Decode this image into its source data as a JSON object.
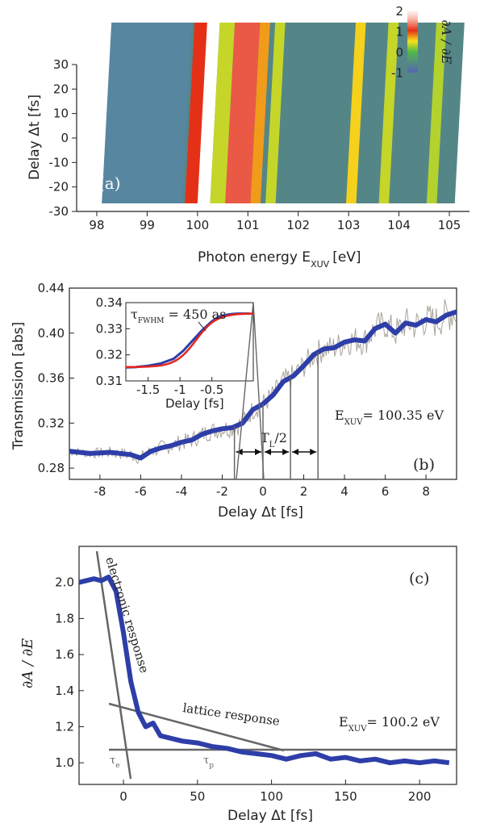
{
  "chart_data": [
    {
      "type": "heatmap",
      "panel": "(a)",
      "xlabel": "Photon energy E",
      "xlabel_sub": "XUV",
      "xlabel_unit": "[eV]",
      "ylabel": "Delay Δt [fs]",
      "xlim": [
        97.6,
        105.4
      ],
      "ylim": [
        -30,
        30
      ],
      "xticks": [
        98,
        99,
        100,
        101,
        102,
        103,
        104,
        105
      ],
      "yticks": [
        30,
        20,
        10,
        0,
        -10,
        -20,
        -30
      ],
      "colorbar": {
        "label": "∂A / ∂E",
        "ticks": [
          2,
          1,
          0,
          -1
        ],
        "colors": [
          "#ffffff",
          "#e53018",
          "#f7e31b",
          "#4fb848",
          "#5864b3"
        ]
      },
      "features": [
        {
          "energy_range": [
            99.75,
            100.05
          ],
          "level": 1.0
        },
        {
          "energy_range": [
            100.0,
            100.25
          ],
          "level": 2.0
        },
        {
          "energy_range": [
            100.25,
            100.55
          ],
          "level": 0.35
        },
        {
          "energy_range": [
            100.55,
            101.05
          ],
          "level": 1.2
        },
        {
          "energy_range": [
            101.05,
            101.25
          ],
          "level": 0.7
        },
        {
          "energy_range": [
            101.35,
            101.55
          ],
          "level": 0.35
        },
        {
          "energy_range": [
            102.95,
            103.15
          ],
          "level": 0.55
        },
        {
          "energy_range": [
            103.6,
            103.8
          ],
          "level": 0.35
        },
        {
          "energy_range": [
            104.55,
            104.75
          ],
          "level": 0.3
        }
      ]
    },
    {
      "type": "line",
      "panel": "(b)",
      "xlabel": "Delay Δt [fs]",
      "ylabel": "Transmission [abs]",
      "xlim": [
        -9.5,
        9.5
      ],
      "ylim": [
        0.27,
        0.44
      ],
      "xticks": [
        -8,
        -6,
        -4,
        -2,
        0,
        2,
        4,
        6,
        8
      ],
      "yticks": [
        0.28,
        0.32,
        0.36,
        0.4,
        0.44
      ],
      "annotation_energy": "E",
      "annotation_energy_sub": "XUV",
      "annotation_energy_value": "= 100.35 eV",
      "period_label": "T",
      "period_label_sub": "L",
      "period_label_tail": "/2",
      "period_markers": [
        -1.4,
        0,
        1.35,
        2.7
      ],
      "series": [
        {
          "x": [
            -9.5,
            -8.5,
            -7.5,
            -6.5,
            -6,
            -5.5,
            -5,
            -4.5,
            -4,
            -3.5,
            -3,
            -2.5,
            -2,
            -1.5,
            -1,
            -0.5,
            0,
            0.5,
            1,
            1.5,
            2,
            2.5,
            3,
            3.5,
            4,
            4.5,
            5,
            5.5,
            6,
            6.5,
            7,
            7.5,
            8,
            8.5,
            9,
            9.5
          ],
          "values": [
            0.295,
            0.293,
            0.294,
            0.292,
            0.289,
            0.295,
            0.298,
            0.3,
            0.303,
            0.305,
            0.31,
            0.313,
            0.315,
            0.316,
            0.32,
            0.332,
            0.337,
            0.345,
            0.357,
            0.362,
            0.371,
            0.381,
            0.386,
            0.387,
            0.392,
            0.394,
            0.393,
            0.404,
            0.408,
            0.4,
            0.409,
            0.407,
            0.412,
            0.41,
            0.416,
            0.419
          ]
        }
      ],
      "inset": {
        "xlabel": "Delay [fs]",
        "xlim": [
          -1.85,
          0.15
        ],
        "ylim": [
          0.31,
          0.34
        ],
        "xticks": [
          -1.5,
          -1,
          -0.5
        ],
        "yticks": [
          0.34,
          0.33,
          0.32,
          0.31
        ],
        "tau_label": "τ",
        "tau_sub": "FWHM",
        "tau_value": " = 450 as",
        "data": {
          "x": [
            -1.85,
            -1.7,
            -1.5,
            -1.3,
            -1.1,
            -0.95,
            -0.8,
            -0.65,
            -0.5,
            -0.4,
            -0.3,
            -0.2,
            -0.1,
            0,
            0.1
          ],
          "values": [
            0.3152,
            0.3153,
            0.3158,
            0.3167,
            0.3185,
            0.3215,
            0.3255,
            0.3295,
            0.3328,
            0.3345,
            0.3352,
            0.3356,
            0.3358,
            0.3358,
            0.3358
          ]
        }
      }
    },
    {
      "type": "line",
      "panel": "(c)",
      "xlabel": "Delay Δt [fs]",
      "ylabel": "∂A / ∂E",
      "xlim": [
        -30,
        225
      ],
      "ylim": [
        0.88,
        2.2
      ],
      "xticks": [
        0,
        50,
        100,
        150,
        200
      ],
      "yticks": [
        1.0,
        1.2,
        1.4,
        1.6,
        1.8,
        2.0
      ],
      "annotation_energy": "E",
      "annotation_energy_sub": "XUV",
      "annotation_energy_value": "= 100.2 eV",
      "electronic_label": "electronic response",
      "lattice_label": "lattice response",
      "tau_e": "τ",
      "tau_e_sub": "e",
      "tau_p": "τ",
      "tau_p_sub": "p",
      "series": [
        {
          "x": [
            -30,
            -20,
            -15,
            -10,
            -5,
            0,
            5,
            10,
            15,
            20,
            25,
            30,
            40,
            50,
            60,
            70,
            80,
            90,
            100,
            110,
            120,
            130,
            140,
            150,
            160,
            170,
            180,
            190,
            200,
            210,
            220
          ],
          "values": [
            2.0,
            2.02,
            2.01,
            2.03,
            1.95,
            1.72,
            1.45,
            1.28,
            1.2,
            1.22,
            1.15,
            1.14,
            1.12,
            1.11,
            1.09,
            1.08,
            1.06,
            1.05,
            1.04,
            1.02,
            1.04,
            1.05,
            1.02,
            1.03,
            1.01,
            1.02,
            1.0,
            1.01,
            1.0,
            1.01,
            1.0
          ]
        }
      ]
    }
  ]
}
